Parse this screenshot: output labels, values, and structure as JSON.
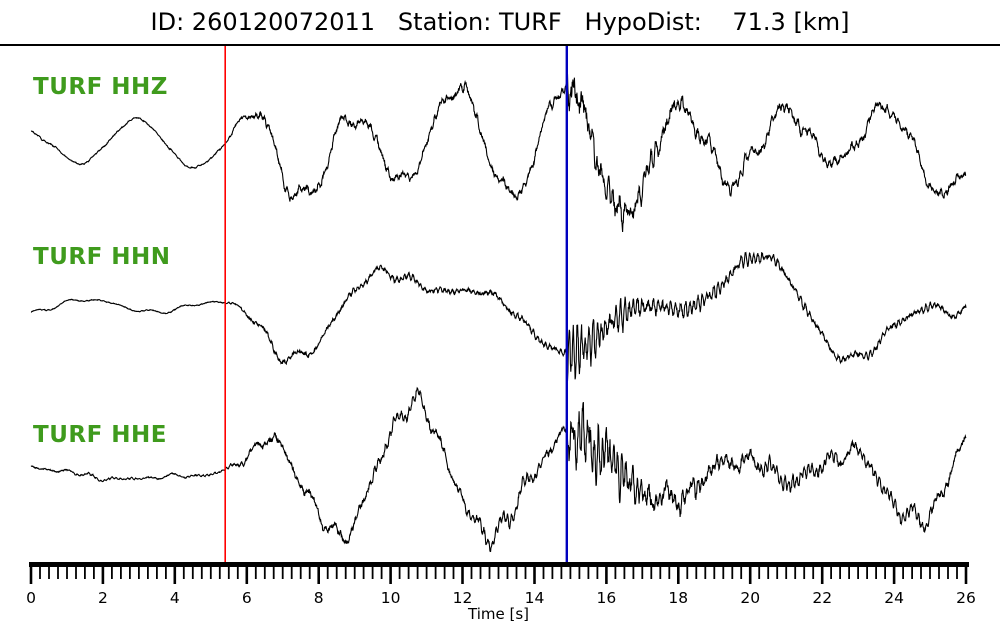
{
  "chart_data": {
    "type": "line",
    "title": "ID: 260120072011   Station: TURF   HypoDist:    71.3 [km]",
    "xlabel": "Time [s]",
    "xlim": [
      0,
      26
    ],
    "x_major_ticks": [
      0,
      2,
      4,
      6,
      8,
      10,
      12,
      14,
      16,
      18,
      20,
      22,
      24,
      26
    ],
    "x_minor_tick_step": 0.25,
    "grid": false,
    "legend": "none",
    "series": [
      {
        "name": "TURF HHZ",
        "color": "#000000",
        "label_color": "#3f9b1d",
        "description": "Vertical-component seismogram: smooth low-amplitude long-period signal before the red line at 5.4 s, large low-frequency oscillations with superimposed noise after it, and a high-frequency burst after the blue line at 14.9 s.",
        "synthesis": {
          "seed": 7,
          "s_burst": 0.55
        }
      },
      {
        "name": "TURF HHN",
        "color": "#000000",
        "label_color": "#3f9b1d",
        "description": "North-component seismogram: quiet smooth onset, emergent low-frequency motion after the red pick line at 5.4 s, strong high-frequency ringing immediately after the blue pick line at 14.9 s.",
        "synthesis": {
          "seed": 23,
          "s_burst": 1.0
        }
      },
      {
        "name": "TURF HHE",
        "color": "#000000",
        "label_color": "#3f9b1d",
        "description": "East-component seismogram: smooth long-period start, large slow oscillations after the red line at 5.4 s, pronounced high-frequency burst following the blue line at 14.9 s.",
        "synthesis": {
          "seed": 91,
          "s_burst": 0.85
        }
      }
    ],
    "annotations": [
      {
        "name": "red-vertical-line",
        "type": "vline",
        "x": 5.4,
        "color": "#ff0000",
        "stroke_width": 1.6
      },
      {
        "name": "blue-vertical-line",
        "type": "vline",
        "x": 14.9,
        "color": "#0000bf",
        "stroke_width": 2.4
      }
    ]
  }
}
